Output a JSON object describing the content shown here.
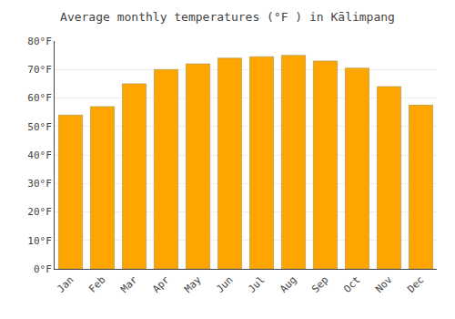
{
  "chart_data": {
    "type": "bar",
    "title": "Average monthly temperatures (°F ) in Kālimpang",
    "categories": [
      "Jan",
      "Feb",
      "Mar",
      "Apr",
      "May",
      "Jun",
      "Jul",
      "Aug",
      "Sep",
      "Oct",
      "Nov",
      "Dec"
    ],
    "values": [
      54,
      57,
      65,
      70,
      72,
      74,
      74.5,
      75,
      73,
      70.5,
      64,
      57.5
    ],
    "color": "#FFA500",
    "ylim": [
      0,
      80
    ],
    "yticks": [
      {
        "value": 0,
        "label": "0°F"
      },
      {
        "value": 10,
        "label": "10°F"
      },
      {
        "value": 20,
        "label": "20°F"
      },
      {
        "value": 30,
        "label": "30°F"
      },
      {
        "value": 40,
        "label": "40°F"
      },
      {
        "value": 50,
        "label": "50°F"
      },
      {
        "value": 60,
        "label": "60°F"
      },
      {
        "value": 70,
        "label": "70°F"
      },
      {
        "value": 80,
        "label": "80°F"
      }
    ],
    "grid": true
  }
}
